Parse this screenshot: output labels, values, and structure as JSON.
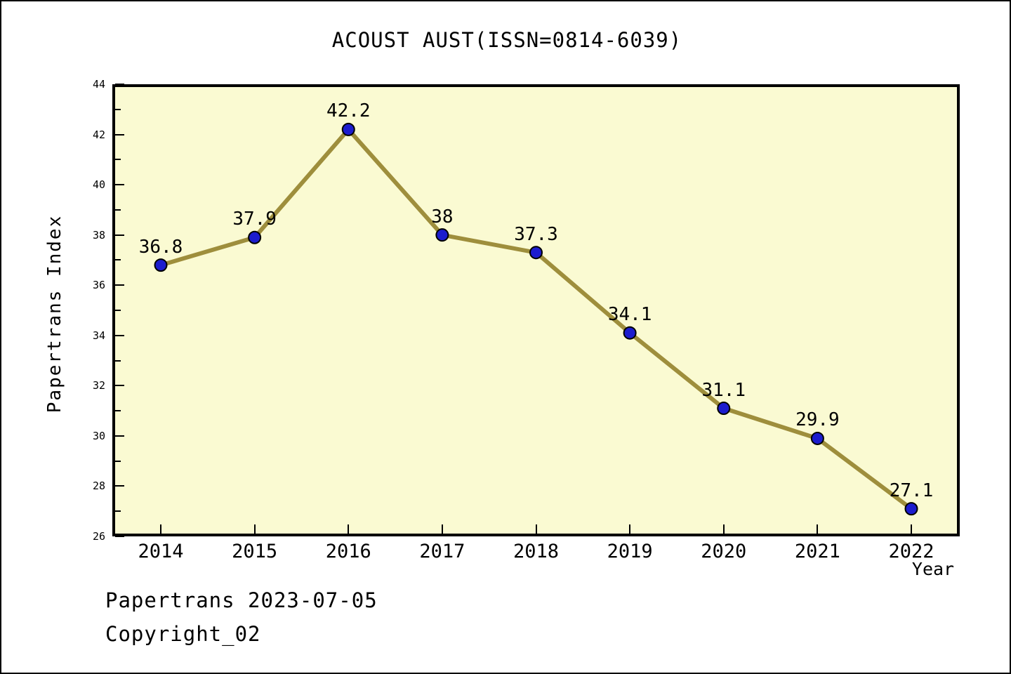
{
  "title": "ACOUST AUST(ISSN=0814-6039)",
  "footer": {
    "line1": "Papertrans 2023-07-05",
    "line2": "Copyright_02"
  },
  "chart_data": {
    "type": "line",
    "title": "ACOUST AUST(ISSN=0814-6039)",
    "xlabel": "Year",
    "ylabel": "Papertrans Index",
    "x": [
      2014,
      2015,
      2016,
      2017,
      2018,
      2019,
      2020,
      2021,
      2022
    ],
    "series": [
      {
        "name": "Papertrans Index",
        "values": [
          36.8,
          37.9,
          42.2,
          38,
          37.3,
          34.1,
          31.1,
          29.9,
          27.1
        ]
      }
    ],
    "point_labels": [
      "36.8",
      "37.9",
      "42.2",
      "38",
      "37.3",
      "34.1",
      "31.1",
      "29.9",
      "27.1"
    ],
    "ylim": [
      26,
      44
    ],
    "y_major_ticks": [
      26,
      28,
      30,
      32,
      34,
      36,
      38,
      40,
      42,
      44
    ],
    "y_minor_ticks": [
      27,
      29,
      31,
      33,
      35,
      37,
      39,
      41,
      43
    ],
    "grid": false,
    "legend_position": "none",
    "colors": {
      "plot_background": "#FAFAD2",
      "line": "#9E8E3C",
      "marker_fill": "#1C1CCE",
      "marker_edge": "#000000",
      "frame": "#000000",
      "text": "#000000"
    }
  }
}
